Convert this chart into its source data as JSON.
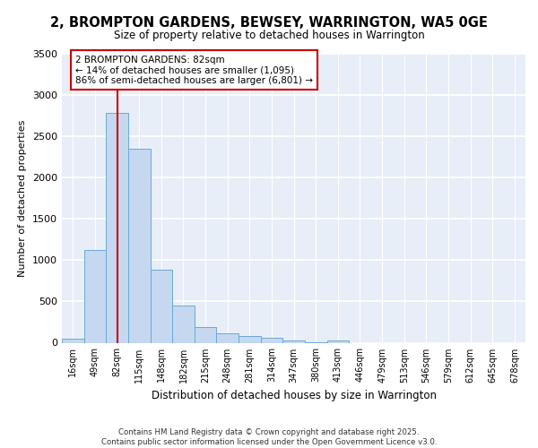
{
  "title_line1": "2, BROMPTON GARDENS, BEWSEY, WARRINGTON, WA5 0GE",
  "title_line2": "Size of property relative to detached houses in Warrington",
  "xlabel": "Distribution of detached houses by size in Warrington",
  "ylabel": "Number of detached properties",
  "footer_line1": "Contains HM Land Registry data © Crown copyright and database right 2025.",
  "footer_line2": "Contains public sector information licensed under the Open Government Licence v3.0.",
  "bin_labels": [
    "16sqm",
    "49sqm",
    "82sqm",
    "115sqm",
    "148sqm",
    "182sqm",
    "215sqm",
    "248sqm",
    "281sqm",
    "314sqm",
    "347sqm",
    "380sqm",
    "413sqm",
    "446sqm",
    "479sqm",
    "513sqm",
    "546sqm",
    "579sqm",
    "612sqm",
    "645sqm",
    "678sqm"
  ],
  "bar_values": [
    50,
    1120,
    2780,
    2350,
    880,
    450,
    195,
    115,
    80,
    55,
    30,
    5,
    30,
    0,
    0,
    0,
    0,
    0,
    0,
    0,
    0
  ],
  "bar_color": "#c5d8f0",
  "bar_edge_color": "#6aaad4",
  "vline_x_index": 2,
  "vline_color": "#cc0000",
  "annotation_text": "2 BROMPTON GARDENS: 82sqm\n← 14% of detached houses are smaller (1,095)\n86% of semi-detached houses are larger (6,801) →",
  "annotation_box_color": "#cc0000",
  "ylim": [
    0,
    3500
  ],
  "yticks": [
    0,
    500,
    1000,
    1500,
    2000,
    2500,
    3000,
    3500
  ],
  "background_color": "#e8eef8",
  "grid_color": "#ffffff"
}
